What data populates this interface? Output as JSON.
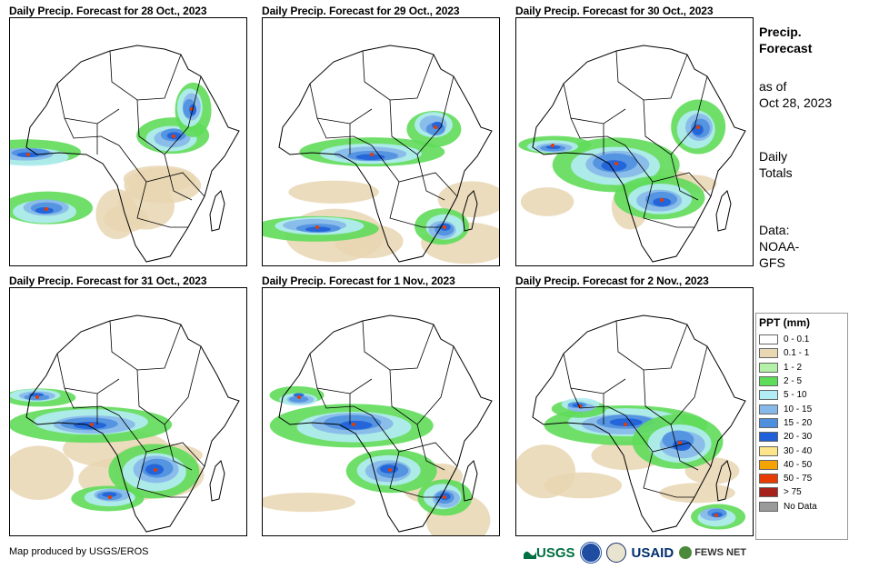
{
  "panels": [
    {
      "title": "Daily Precip. Forecast for 28 Oct., 2023"
    },
    {
      "title": "Daily Precip. Forecast for 29 Oct., 2023"
    },
    {
      "title": "Daily Precip. Forecast for 30 Oct., 2023"
    },
    {
      "title": "Daily Precip. Forecast for 31 Oct., 2023"
    },
    {
      "title": "Daily Precip. Forecast for 1 Nov., 2023"
    },
    {
      "title": "Daily Precip. Forecast for 2 Nov., 2023"
    }
  ],
  "side": {
    "title_line1": "Precip.",
    "title_line2": "Forecast",
    "asof_line1": "as of",
    "asof_line2": "Oct 28, 2023",
    "type_line1": "Daily",
    "type_line2": "Totals",
    "data_line1": "Data:",
    "data_line2": "NOAA-",
    "data_line3": "GFS"
  },
  "legend": {
    "title": "PPT (mm)",
    "items": [
      {
        "label": "0 - 0.1",
        "color": "#ffffff"
      },
      {
        "label": "0.1 - 1",
        "color": "#e9d6b3"
      },
      {
        "label": "1 - 2",
        "color": "#b5f0a8"
      },
      {
        "label": "2 - 5",
        "color": "#5fdc5a"
      },
      {
        "label": "5 - 10",
        "color": "#b2ecf5"
      },
      {
        "label": "10 - 15",
        "color": "#87b8ea"
      },
      {
        "label": "15 - 20",
        "color": "#4f8fe0"
      },
      {
        "label": "20 - 30",
        "color": "#1f5fd8"
      },
      {
        "label": "30 - 40",
        "color": "#fce58a"
      },
      {
        "label": "40 - 50",
        "color": "#f4a300"
      },
      {
        "label": "50 - 75",
        "color": "#e63c00"
      },
      {
        "label": "> 75",
        "color": "#a8201a"
      },
      {
        "label": "No Data",
        "color": "#9a9a9a"
      }
    ]
  },
  "credit": "Map produced by USGS/EROS",
  "logos": {
    "usgs": "USGS",
    "usaid": "USAID",
    "fews": "FEWS NET"
  }
}
